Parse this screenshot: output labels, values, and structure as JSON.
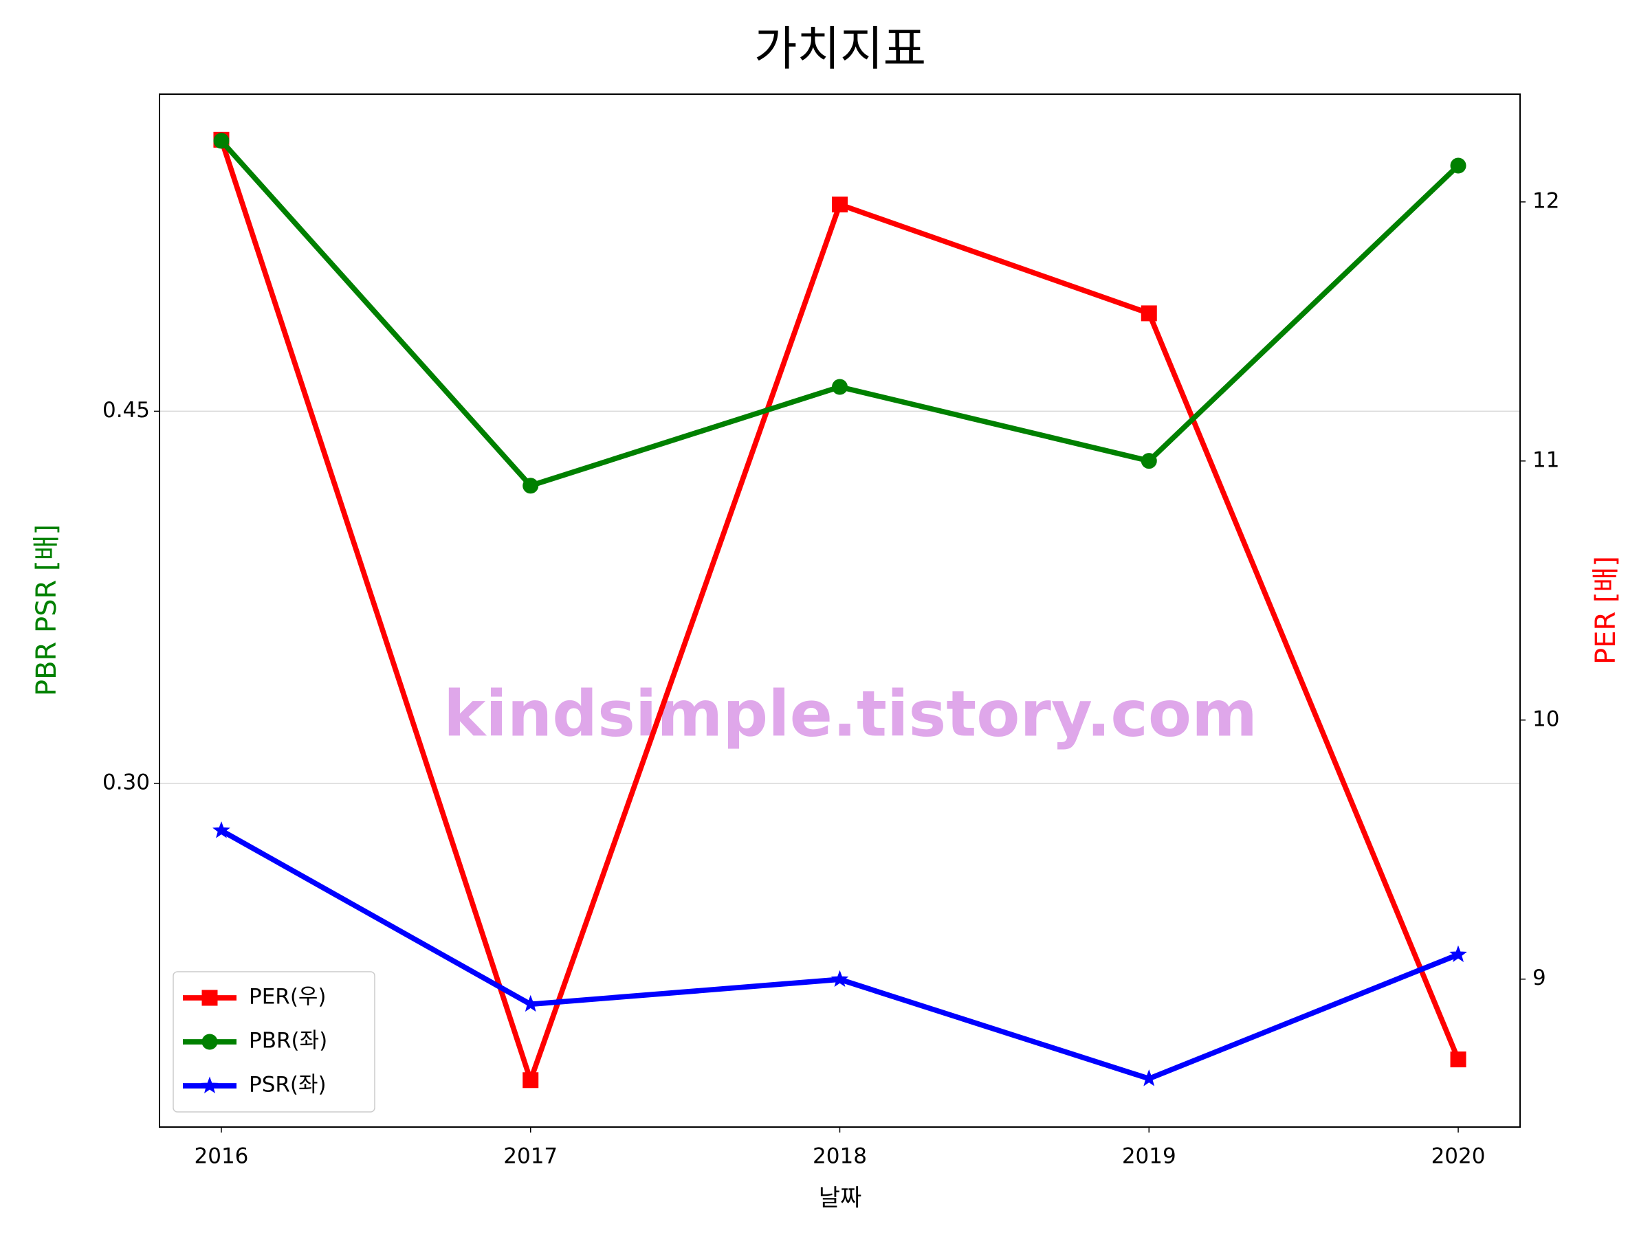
{
  "chart_data": {
    "type": "line",
    "title": "가치지표",
    "xlabel": "날짜",
    "ylabel": "PBR PSR [배]",
    "y2label": "PER [배]",
    "ylabel_color": "#008000",
    "y2label_color": "#ff0000",
    "watermark": "kindsimple.tistory.com",
    "x": [
      2016,
      2017,
      2018,
      2019,
      2020
    ],
    "xlim": [
      2015.8,
      2020.2
    ],
    "xticks": [
      2016,
      2017,
      2018,
      2019,
      2020
    ],
    "ylim": [
      0.1615,
      0.5778
    ],
    "yticks": [
      {
        "value": 0.3,
        "label": "0.30"
      },
      {
        "value": 0.45,
        "label": "0.45"
      }
    ],
    "y2lim": [
      8.429,
      12.416
    ],
    "y2ticks": [
      9,
      10,
      11,
      12
    ],
    "grid": true,
    "legend": "lower left",
    "series": [
      {
        "name": "PER(우)",
        "color": "#ff0000",
        "marker": "square",
        "axis": "y2",
        "values": [
          12.24,
          8.61,
          11.99,
          11.57,
          8.69
        ]
      },
      {
        "name": "PBR(좌)",
        "color": "#008000",
        "marker": "circle",
        "values": [
          0.559,
          0.42,
          0.4598,
          0.43,
          0.549
        ]
      },
      {
        "name": "PSR(좌)",
        "color": "#0000ff",
        "marker": "star",
        "values": [
          0.281,
          0.211,
          0.221,
          0.181,
          0.231
        ]
      }
    ]
  }
}
